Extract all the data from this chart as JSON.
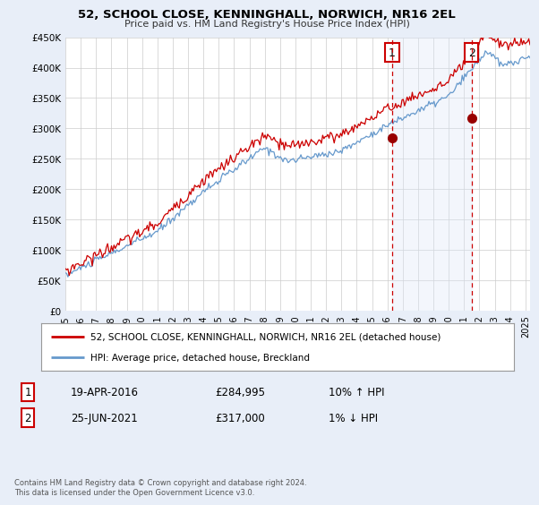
{
  "title": "52, SCHOOL CLOSE, KENNINGHALL, NORWICH, NR16 2EL",
  "subtitle": "Price paid vs. HM Land Registry's House Price Index (HPI)",
  "ylabel_ticks": [
    "£0",
    "£50K",
    "£100K",
    "£150K",
    "£200K",
    "£250K",
    "£300K",
    "£350K",
    "£400K",
    "£450K"
  ],
  "ytick_values": [
    0,
    50000,
    100000,
    150000,
    200000,
    250000,
    300000,
    350000,
    400000,
    450000
  ],
  "ylim": [
    0,
    450000
  ],
  "xlim_start": 1995.0,
  "xlim_end": 2025.3,
  "xticks": [
    1995,
    1996,
    1997,
    1998,
    1999,
    2000,
    2001,
    2002,
    2003,
    2004,
    2005,
    2006,
    2007,
    2008,
    2009,
    2010,
    2011,
    2012,
    2013,
    2014,
    2015,
    2016,
    2017,
    2018,
    2019,
    2020,
    2021,
    2022,
    2023,
    2024,
    2025
  ],
  "background_color": "#e8eef8",
  "plot_bg_color": "#ffffff",
  "red_line_color": "#cc0000",
  "blue_line_color": "#6699cc",
  "shade_color": "#dde8f8",
  "sale1_x": 2016.3,
  "sale1_y": 284995,
  "sale2_x": 2021.48,
  "sale2_y": 317000,
  "sale1_label": "1",
  "sale2_label": "2",
  "legend_red": "52, SCHOOL CLOSE, KENNINGHALL, NORWICH, NR16 2EL (detached house)",
  "legend_blue": "HPI: Average price, detached house, Breckland",
  "table_row1": [
    "1",
    "19-APR-2016",
    "£284,995",
    "10% ↑ HPI"
  ],
  "table_row2": [
    "2",
    "25-JUN-2021",
    "£317,000",
    "1% ↓ HPI"
  ],
  "footer": "Contains HM Land Registry data © Crown copyright and database right 2024.\nThis data is licensed under the Open Government Licence v3.0."
}
